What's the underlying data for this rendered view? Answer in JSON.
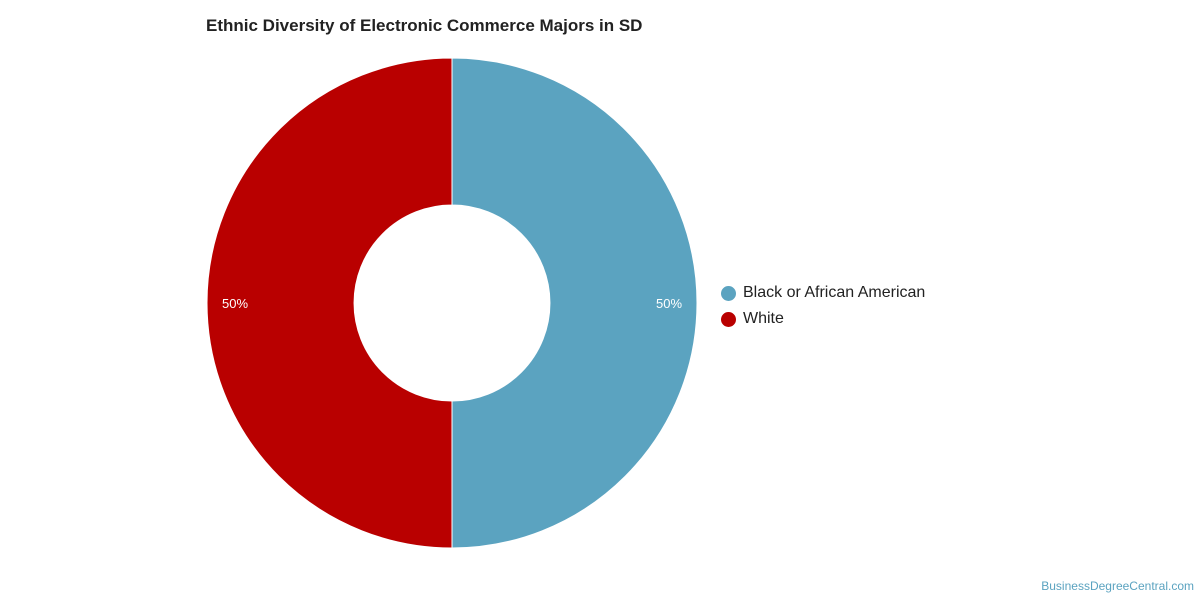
{
  "chart_data": {
    "type": "pie",
    "title": "Ethnic Diversity of Electronic Commerce Majors in SD",
    "donut": true,
    "series": [
      {
        "name": "Black or African American",
        "value": 50,
        "label": "50%",
        "color": "#5ba3c0"
      },
      {
        "name": "White",
        "value": 50,
        "label": "50%",
        "color": "#b90000"
      }
    ],
    "legend_position": "right"
  },
  "watermark": "BusinessDegreeCentral.com"
}
